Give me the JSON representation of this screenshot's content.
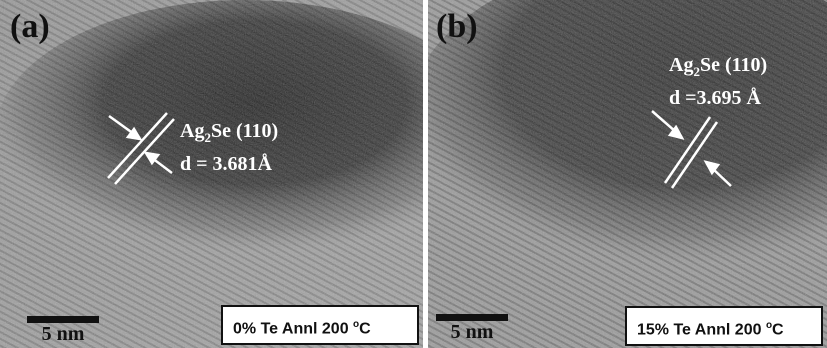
{
  "panels": [
    {
      "label": "(a)",
      "annotation_line1_prefix": "Ag",
      "annotation_line1_sub": "2",
      "annotation_line1_suffix": "Se (110)",
      "annotation_line2": "d = 3.681Å",
      "scale_bar": "5 nm",
      "condition_prefix": "0% Te Annl 200 ",
      "condition_sup": "o",
      "condition_suffix": "C"
    },
    {
      "label": "(b)",
      "annotation_line1_prefix": "Ag",
      "annotation_line1_sub": "2",
      "annotation_line1_suffix": "Se (110)",
      "annotation_line2": "d =3.695 Å",
      "scale_bar": "5 nm",
      "condition_prefix": "15% Te Annl 200 ",
      "condition_sup": "o",
      "condition_suffix": "C"
    }
  ]
}
